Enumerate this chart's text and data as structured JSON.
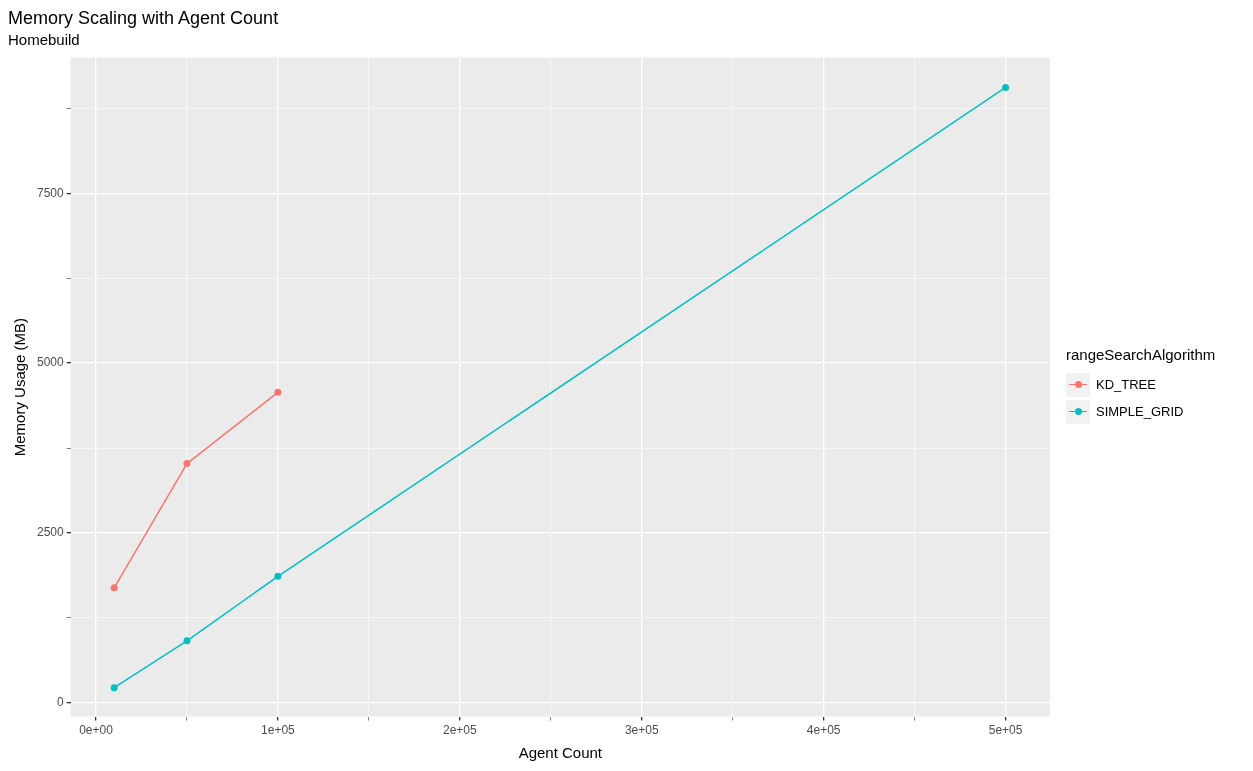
{
  "chart_data": {
    "type": "line",
    "title": "Memory Scaling with Agent Count",
    "subtitle": "Homebuild",
    "xlabel": "Agent Count",
    "ylabel": "Memory Usage (MB)",
    "legend_title": "rangeSearchAlgorithm",
    "legend": "right",
    "grid": true,
    "marker": "circle",
    "line_style": "solid",
    "series": [
      {
        "name": "KD_TREE",
        "color": "#f8766d",
        "x": [
          10000,
          50000,
          100000
        ],
        "values": [
          1690,
          3520,
          4570
        ]
      },
      {
        "name": "SIMPLE_GRID",
        "color": "#00bfc4",
        "x": [
          10000,
          50000,
          100000,
          500000
        ],
        "values": [
          220,
          910,
          1860,
          9060
        ]
      }
    ],
    "xlim": [
      -13900,
      524400
    ],
    "ylim": [
      -206,
      9500
    ],
    "xticks": [
      {
        "value": 0,
        "label": "0e+00"
      },
      {
        "value": 50000,
        "label": null
      },
      {
        "value": 100000,
        "label": "1e+05"
      },
      {
        "value": 150000,
        "label": null
      },
      {
        "value": 200000,
        "label": "2e+05"
      },
      {
        "value": 250000,
        "label": null
      },
      {
        "value": 300000,
        "label": "3e+05"
      },
      {
        "value": 350000,
        "label": null
      },
      {
        "value": 400000,
        "label": "4e+05"
      },
      {
        "value": 450000,
        "label": null
      },
      {
        "value": 500000,
        "label": "5e+05"
      }
    ],
    "yticks": [
      0,
      {
        "value": 1250,
        "label": null
      },
      2500,
      {
        "value": 3750,
        "label": null
      },
      5000,
      {
        "value": 6250,
        "label": null
      },
      7500,
      {
        "value": 8750,
        "label": null
      }
    ]
  }
}
